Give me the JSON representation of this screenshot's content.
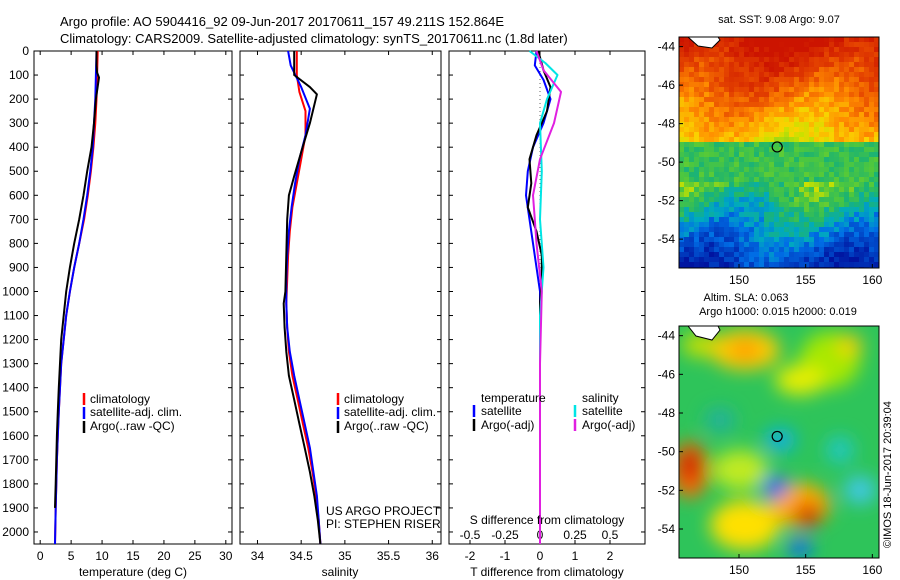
{
  "header": {
    "title_line1": "Argo profile: AO 5904416_92 09-Jun-2017 20170611_157 49.211S 152.864E",
    "title_line2": "Climatology: CARS2009. Satellite-adjusted climatology: synTS_20170611.nc (1.8d later)"
  },
  "colors": {
    "climatology": "#ff0000",
    "satellite": "#0000ff",
    "argo": "#000000",
    "salinity_satellite": "#00e5e5",
    "salinity_argo": "#e020e0"
  },
  "text": {
    "project_line1": "US ARGO PROJECT",
    "project_line2": "PI: STEPHEN RISER",
    "sst_title": "sat. SST: 9.08 Argo: 9.07",
    "sla_title1": "Altim. SLA: 0.063",
    "sla_title2": "Argo h1000: 0.015 h2000: 0.019",
    "credit": "©IMOS 18-Jun-2017 20:39:04"
  },
  "chart_data": [
    {
      "type": "line",
      "name": "temperature profile",
      "xlabel": "temperature (deg C)",
      "ylabel": "",
      "xlim": [
        -1,
        31
      ],
      "ylim": [
        2050,
        0
      ],
      "xticks": [
        0,
        5,
        10,
        15,
        20,
        25,
        30
      ],
      "yticks": [
        0,
        100,
        200,
        300,
        400,
        500,
        600,
        700,
        800,
        900,
        1000,
        1100,
        1200,
        1300,
        1400,
        1500,
        1600,
        1700,
        1800,
        1900,
        2000
      ],
      "legend": [
        "climatology",
        "satellite-adj. clim.",
        "Argo(..raw -QC)"
      ],
      "legend_position": "lower-right",
      "series": [
        {
          "name": "climatology",
          "color": "#ff0000",
          "x": [
            9.3,
            9.2,
            9.1,
            8.9,
            8.6,
            8.2,
            7.7,
            7.1,
            6.3,
            5.5,
            4.8,
            4.2,
            3.8,
            3.4,
            3.2,
            3.0,
            2.85,
            2.7,
            2.6,
            2.5,
            2.4
          ],
          "y": [
            0,
            100,
            200,
            300,
            400,
            500,
            600,
            700,
            800,
            900,
            1000,
            1100,
            1200,
            1300,
            1400,
            1500,
            1600,
            1700,
            1800,
            1900,
            2050
          ]
        },
        {
          "name": "satellite-adj. clim.",
          "color": "#0000ff",
          "x": [
            9.1,
            9.0,
            8.9,
            8.7,
            8.5,
            8.1,
            7.6,
            7.0,
            6.3,
            5.5,
            4.8,
            4.2,
            3.8,
            3.4,
            3.2,
            3.0,
            2.85,
            2.7,
            2.6,
            2.5,
            2.4
          ],
          "y": [
            0,
            100,
            200,
            300,
            400,
            500,
            600,
            700,
            800,
            900,
            1000,
            1100,
            1200,
            1300,
            1400,
            1500,
            1600,
            1700,
            1800,
            1900,
            2050
          ]
        },
        {
          "name": "Argo(..raw -QC)",
          "color": "#000000",
          "x": [
            9.1,
            9.1,
            9.2,
            9.5,
            9.0,
            8.7,
            8.3,
            7.6,
            7.0,
            6.3,
            5.5,
            4.8,
            4.2,
            3.8,
            3.4,
            3.2,
            3.0,
            2.85,
            2.7,
            2.6,
            2.5,
            2.4
          ],
          "y": [
            0,
            60,
            90,
            110,
            200,
            300,
            400,
            500,
            600,
            700,
            800,
            900,
            1000,
            1100,
            1200,
            1300,
            1400,
            1500,
            1600,
            1700,
            1800,
            1900
          ]
        }
      ]
    },
    {
      "type": "line",
      "name": "salinity profile",
      "xlabel": "salinity",
      "ylabel": "",
      "xlim": [
        33.8,
        36.1
      ],
      "ylim": [
        2050,
        0
      ],
      "xticks": [
        34,
        34.5,
        35,
        35.5,
        36
      ],
      "legend": [
        "climatology",
        "satellite-adj. clim.",
        "Argo(..raw -QC)"
      ],
      "legend_position": "lower-right",
      "series": [
        {
          "name": "climatology",
          "color": "#ff0000",
          "x": [
            34.45,
            34.45,
            34.48,
            34.55,
            34.55,
            34.5,
            34.45,
            34.4,
            34.37,
            34.35,
            34.34,
            34.33,
            34.34,
            34.36,
            34.4,
            34.46,
            34.52,
            34.58,
            34.63,
            34.67,
            34.7,
            34.72
          ],
          "y": [
            0,
            100,
            170,
            250,
            350,
            450,
            550,
            650,
            750,
            850,
            950,
            1050,
            1150,
            1250,
            1350,
            1450,
            1550,
            1650,
            1750,
            1850,
            1950,
            2050
          ]
        },
        {
          "name": "satellite-adj. clim.",
          "color": "#0000ff",
          "x": [
            34.35,
            34.38,
            34.5,
            34.6,
            34.55,
            34.48,
            34.43,
            34.39,
            34.36,
            34.34,
            34.33,
            34.33,
            34.34,
            34.37,
            34.42,
            34.48,
            34.54,
            34.6,
            34.64,
            34.68,
            34.7,
            34.72
          ],
          "y": [
            0,
            60,
            150,
            240,
            350,
            450,
            550,
            650,
            750,
            850,
            950,
            1050,
            1150,
            1250,
            1350,
            1450,
            1550,
            1650,
            1750,
            1850,
            1950,
            2050
          ]
        },
        {
          "name": "Argo(..raw -QC)",
          "color": "#000000",
          "x": [
            34.42,
            34.42,
            34.6,
            34.68,
            34.6,
            34.5,
            34.42,
            34.36,
            34.34,
            34.33,
            34.32,
            34.3,
            34.31,
            34.33,
            34.36,
            34.42,
            34.48,
            34.54,
            34.6,
            34.65,
            34.69,
            34.72
          ],
          "y": [
            0,
            100,
            150,
            180,
            300,
            420,
            520,
            600,
            700,
            850,
            1000,
            1050,
            1150,
            1250,
            1350,
            1450,
            1550,
            1650,
            1750,
            1850,
            1950,
            2050
          ]
        }
      ]
    },
    {
      "type": "line",
      "name": "difference from climatology",
      "xlabel": "T difference from climatology",
      "xlabel_top": "S difference from climatology",
      "ylabel": "",
      "xlim": [
        -2.6,
        3.0
      ],
      "ylim": [
        2050,
        0
      ],
      "xticks": [
        -2,
        -1,
        0,
        1,
        2
      ],
      "s_xticks": [
        "-0.5",
        "-0.25",
        "0",
        "0.25",
        "0.5"
      ],
      "legend_temperature": {
        "heading": "temperature",
        "items": [
          "satellite",
          "Argo(-adj)"
        ]
      },
      "legend_salinity": {
        "heading": "salinity",
        "items": [
          "satellite",
          "Argo(-adj)"
        ]
      },
      "series": [
        {
          "name": "temperature satellite",
          "color": "#0000ff",
          "x": [
            -0.1,
            -0.15,
            0.1,
            0.3,
            0.1,
            -0.2,
            -0.35,
            -0.4,
            -0.3,
            -0.2,
            -0.1,
            0.0,
            0.0,
            0.0,
            0.0,
            0.0,
            0.0,
            0.0,
            0.0,
            0.0
          ],
          "y": [
            0,
            60,
            120,
            200,
            300,
            400,
            500,
            600,
            700,
            800,
            900,
            1000,
            1200,
            1400,
            1500,
            1600,
            1700,
            1800,
            1900,
            2050
          ]
        },
        {
          "name": "temperature Argo(-adj)",
          "color": "#000000",
          "x": [
            -0.05,
            0.1,
            0.3,
            0.2,
            -0.1,
            -0.3,
            -0.25,
            -0.35,
            -0.1,
            0.05,
            0.05,
            0.0,
            0.0,
            0.0,
            0.0,
            0.0,
            0.0
          ],
          "y": [
            0,
            80,
            150,
            250,
            350,
            450,
            550,
            650,
            750,
            850,
            950,
            1050,
            1300,
            1500,
            1700,
            1900,
            2050
          ]
        },
        {
          "name": "salinity satellite",
          "color": "#00e5e5",
          "x": [
            -0.3,
            0.15,
            0.5,
            0.2,
            0.0,
            0.05,
            0.0,
            0.1,
            0.0,
            0.0,
            0.0,
            0.0,
            0.0
          ],
          "y": [
            0,
            50,
            100,
            200,
            300,
            500,
            700,
            900,
            1100,
            1300,
            1500,
            1800,
            2050
          ]
        },
        {
          "name": "salinity Argo(-adj)",
          "color": "#e020e0",
          "x": [
            -0.1,
            0.1,
            0.6,
            0.4,
            0.0,
            -0.2,
            -0.15,
            -0.1,
            0.05,
            0.0,
            0.0,
            0.0
          ],
          "y": [
            0,
            80,
            170,
            300,
            450,
            600,
            700,
            800,
            1000,
            1300,
            1600,
            2050
          ]
        }
      ]
    },
    {
      "type": "heatmap",
      "name": "satellite SST map",
      "title": "sat. SST: 9.08 Argo: 9.07",
      "xlim": [
        145.5,
        160.5
      ],
      "ylim": [
        -55.5,
        -43.5
      ],
      "xticks": [
        150,
        155,
        160
      ],
      "yticks": [
        -44,
        -46,
        -48,
        -50,
        -52,
        -54
      ],
      "marker": {
        "lon": 152.864,
        "lat": -49.211
      }
    },
    {
      "type": "heatmap",
      "name": "altimeter SLA map",
      "title": "Altim. SLA: 0.063",
      "xlim": [
        145.5,
        160.5
      ],
      "ylim": [
        -55.5,
        -43.5
      ],
      "xticks": [
        150,
        155,
        160
      ],
      "yticks": [
        -44,
        -46,
        -48,
        -50,
        -52,
        -54
      ],
      "marker": {
        "lon": 152.864,
        "lat": -49.211
      }
    }
  ]
}
